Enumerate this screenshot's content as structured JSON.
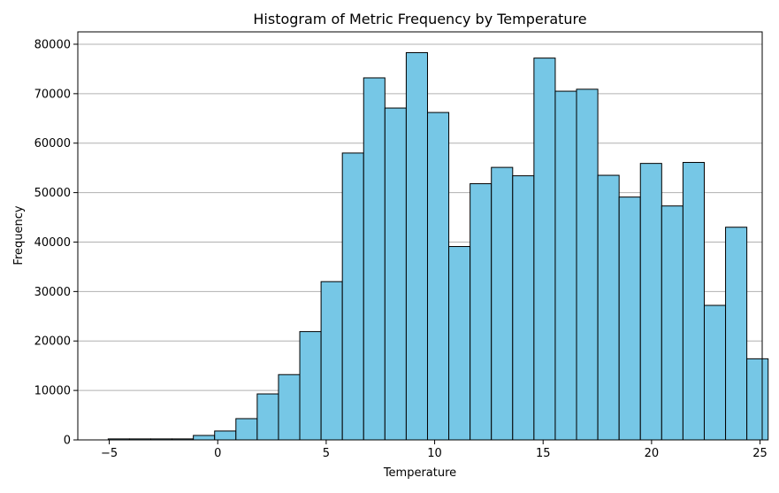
{
  "chart_data": {
    "type": "bar",
    "title": "Histogram of Metric Frequency by Temperature",
    "xlabel": "Temperature",
    "ylabel": "Frequency",
    "xlim": [
      -6.45,
      25.1
    ],
    "ylim": [
      0,
      82500
    ],
    "xticks": [
      -5,
      0,
      5,
      10,
      15,
      20,
      25
    ],
    "yticks": [
      0,
      10000,
      20000,
      30000,
      40000,
      50000,
      60000,
      70000,
      80000
    ],
    "grid": "y",
    "bar_color": "#76C7E6",
    "edge_color": "#000000",
    "bin_start": -5.05,
    "bin_width": 0.9814,
    "values": [
      200,
      200,
      200,
      200,
      900,
      1800,
      4300,
      9300,
      13200,
      21900,
      32000,
      58000,
      73200,
      67100,
      78300,
      66200,
      39100,
      51800,
      55100,
      53400,
      77200,
      70500,
      70900,
      53500,
      49100,
      55900,
      47300,
      56100,
      27200,
      43000,
      16400
    ]
  }
}
